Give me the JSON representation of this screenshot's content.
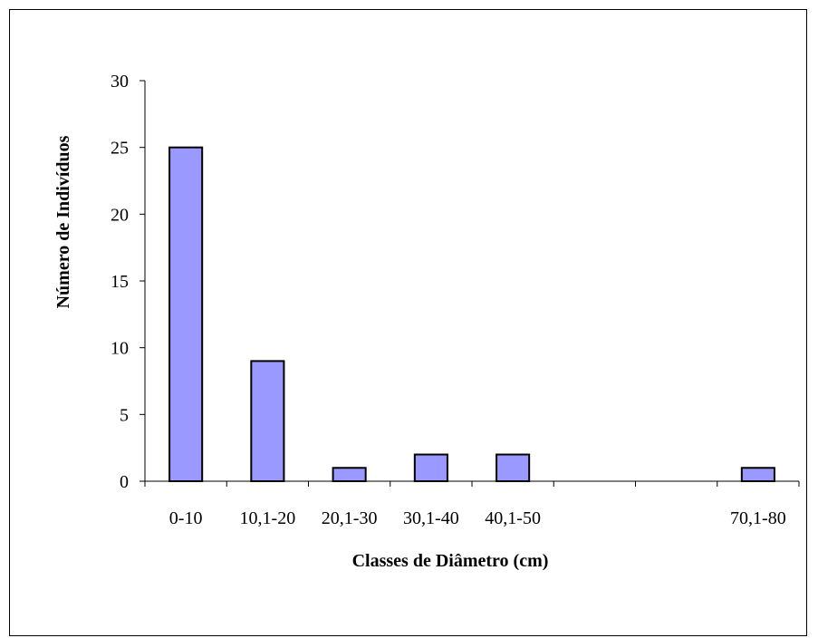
{
  "chart_data": {
    "type": "bar",
    "title": "",
    "xlabel": "Classes de Diâmetro (cm)",
    "ylabel": "Número de Indivíduos",
    "ylim": [
      0,
      30
    ],
    "yticks": [
      "0",
      "5",
      "10",
      "15",
      "20",
      "25",
      "30"
    ],
    "categories": [
      "0-10",
      "10,1-20",
      "20,1-30",
      "30,1-40",
      "40,1-50",
      "",
      "",
      "70,1-80"
    ],
    "values": [
      25,
      9,
      1,
      2,
      2,
      0,
      0,
      1
    ],
    "grid": false,
    "legend": "none"
  },
  "colors": {
    "bar_fill": "#9999ff",
    "bar_stroke": "#000000",
    "axis": "#000000"
  }
}
